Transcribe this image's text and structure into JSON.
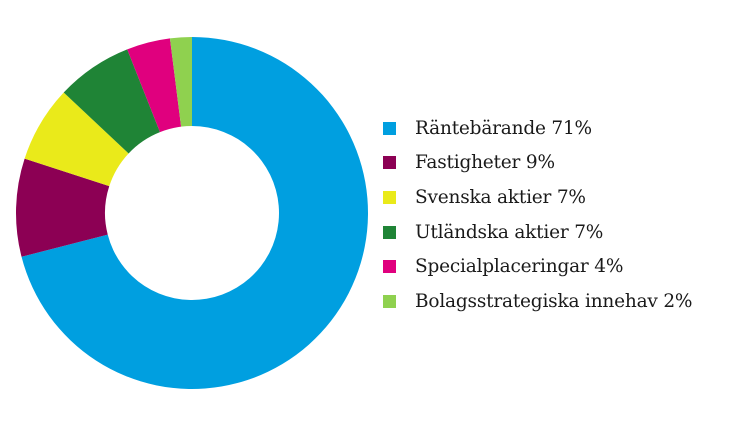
{
  "chart_data": {
    "type": "pie",
    "variant": "donut",
    "title": "",
    "legend_position": "right",
    "slices": [
      {
        "label": "Räntebärande 71%",
        "value": 71,
        "color": "#009fe0"
      },
      {
        "label": "Fastigheter 9%",
        "value": 9,
        "color": "#8c0054"
      },
      {
        "label": "Svenska aktier 7%",
        "value": 7,
        "color": "#eaea1a"
      },
      {
        "label": "Utländska aktier 7%",
        "value": 7,
        "color": "#1f8436"
      },
      {
        "label": "Specialplaceringar 4%",
        "value": 4,
        "color": "#e0007e"
      },
      {
        "label": "Bolagsstrategiska innehav 2%",
        "value": 2,
        "color": "#8fd14f"
      }
    ]
  }
}
